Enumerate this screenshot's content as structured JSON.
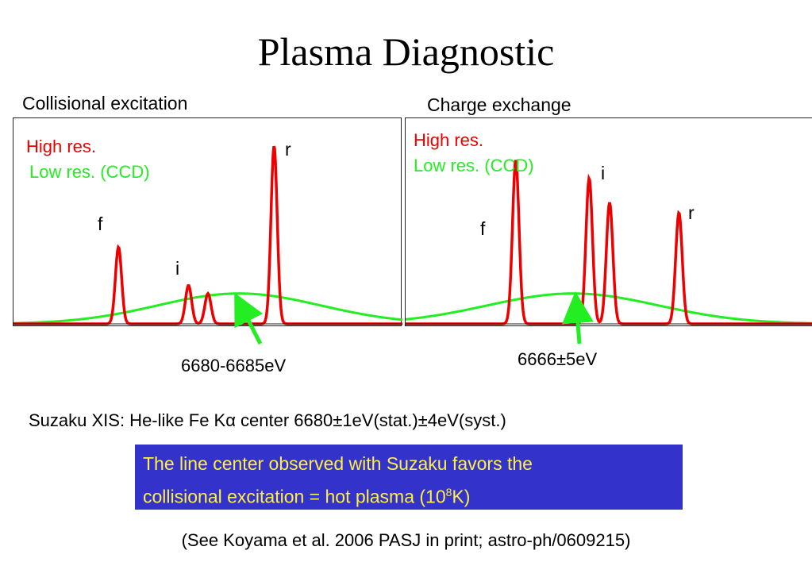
{
  "slide": {
    "title": "Plasma Diagnostic",
    "suzaku_note": "Suzaku XIS: He-like Fe Kα center 6680±1eV(stat.)±4eV(syst.)",
    "conclusion_line1": "The line center observed with Suzaku favors the",
    "conclusion_line2_prefix": "collisional excitation = hot plasma (10",
    "conclusion_exp": "8",
    "conclusion_line2_suffix": "K)",
    "reference": "(See Koyama et al. 2006 PASJ in print; astro-ph/0609215)"
  },
  "colors": {
    "high_res": "#ee0000",
    "low_res": "#22ee22",
    "box_bg": "#3333cc",
    "box_text": "#ffee44"
  },
  "chart_data": [
    {
      "type": "line",
      "title": "Collisional excitation",
      "legend": [
        "High res.",
        "Low res. (CCD)"
      ],
      "legend_placement": "top-left",
      "line_labels": [
        "f",
        "i",
        "r"
      ],
      "annotation": "6680-6685eV",
      "high_res": {
        "name": "High res.",
        "centers": [
          0.27,
          0.45,
          0.5,
          0.67
        ],
        "heights": [
          0.38,
          0.19,
          0.15,
          0.88
        ],
        "width": 0.008
      },
      "low_res": {
        "name": "Low res. (CCD)",
        "center": 0.58,
        "height": 0.15,
        "width": 0.21
      }
    },
    {
      "type": "line",
      "title": "Charge exchange",
      "legend": [
        "High res.",
        "Low res. (CCD)"
      ],
      "legend_placement": "top-left",
      "line_labels": [
        "f",
        "i",
        "r"
      ],
      "annotation": "6666±5eV",
      "high_res": {
        "name": "High res.",
        "centers": [
          0.27,
          0.45,
          0.5,
          0.67
        ],
        "heights": [
          0.81,
          0.72,
          0.6,
          0.55
        ],
        "width": 0.008
      },
      "low_res": {
        "name": "Low res. (CCD)",
        "center": 0.41,
        "height": 0.15,
        "width": 0.21
      }
    }
  ]
}
